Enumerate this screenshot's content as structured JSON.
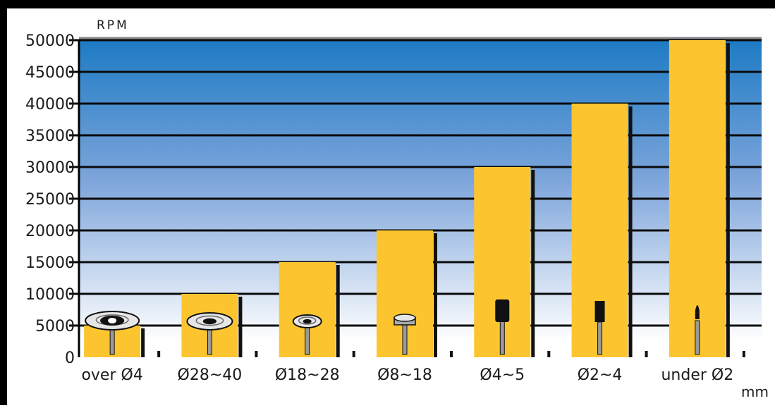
{
  "chart_data": {
    "type": "bar",
    "categories": [
      "over Ø4",
      "Ø28~40",
      "Ø18~28",
      "Ø8~18",
      "Ø4~5",
      "Ø2~4",
      "under Ø2"
    ],
    "values": [
      5000,
      10000,
      15000,
      20000,
      30000,
      40000,
      50000
    ],
    "title": "",
    "ylabel": "RPM",
    "xlabel": "mm",
    "ylim": [
      0,
      50000
    ],
    "yticks": [
      0,
      5000,
      10000,
      15000,
      20000,
      25000,
      30000,
      35000,
      40000,
      45000,
      50000
    ],
    "grid": true,
    "legend": "none"
  },
  "colors": {
    "bar": "#fcc530",
    "bar_shadow": "#111111",
    "gradient_top": "#1e7bc4",
    "gradient_mid": "#7fa6db",
    "gradient_bottom": "#ffffff",
    "grid": "#0a0a0a",
    "frame": "#000000"
  },
  "tool_icons": [
    "flat-disc-tool-icon",
    "thin-disc-tool-icon",
    "small-disc-tool-icon",
    "cylinder-head-tool-icon",
    "cylinder-point-tool-icon",
    "narrow-point-tool-icon",
    "fine-point-tool-icon"
  ]
}
